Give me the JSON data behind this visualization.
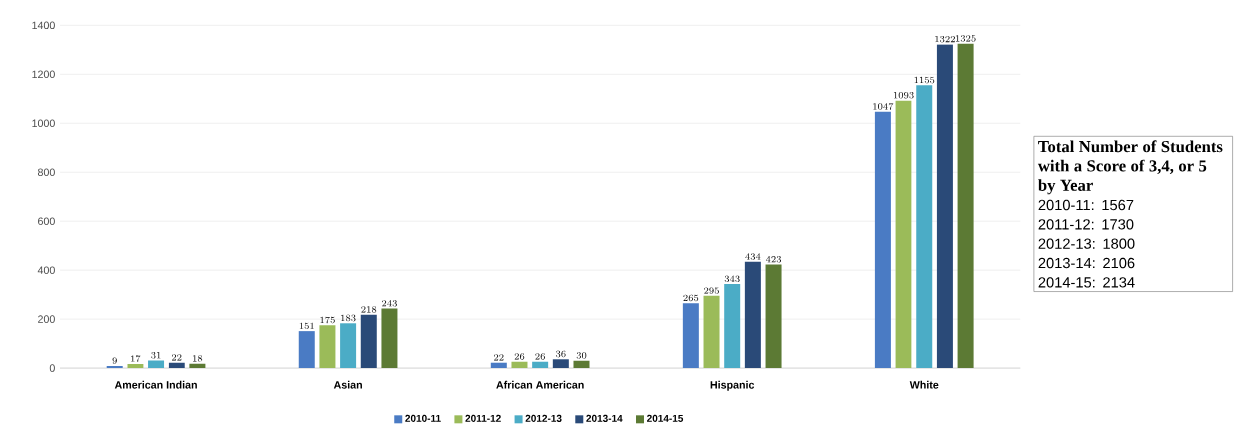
{
  "chart_data": {
    "type": "bar",
    "categories": [
      "American Indian",
      "Asian",
      "African American",
      "Hispanic",
      "White"
    ],
    "series": [
      {
        "name": "2010-11",
        "color": "#4a7bc4",
        "values": [
          9,
          151,
          22,
          265,
          1047
        ]
      },
      {
        "name": "2011-12",
        "color": "#9bbb59",
        "values": [
          17,
          175,
          26,
          295,
          1093
        ]
      },
      {
        "name": "2012-13",
        "color": "#4bacc6",
        "values": [
          31,
          183,
          26,
          343,
          1155
        ]
      },
      {
        "name": "2013-14",
        "color": "#2a4a78",
        "values": [
          22,
          218,
          36,
          434,
          1322
        ]
      },
      {
        "name": "2014-15",
        "color": "#5c7a34",
        "values": [
          18,
          243,
          30,
          423,
          1325
        ]
      }
    ],
    "ylim": [
      0,
      1400
    ],
    "yticks": [
      0,
      200,
      400,
      600,
      800,
      1000,
      1200,
      1400
    ],
    "grid": "y",
    "legend": "bottom",
    "data_labels": true,
    "annotations": [
      "Total Number of Students with a Score of 3,4, or 5 by Year",
      "2010-11:  1567",
      "2011-12:  1730",
      "2012-13:  1800",
      "2013-14:  2106",
      "2014-15:  2134"
    ]
  }
}
